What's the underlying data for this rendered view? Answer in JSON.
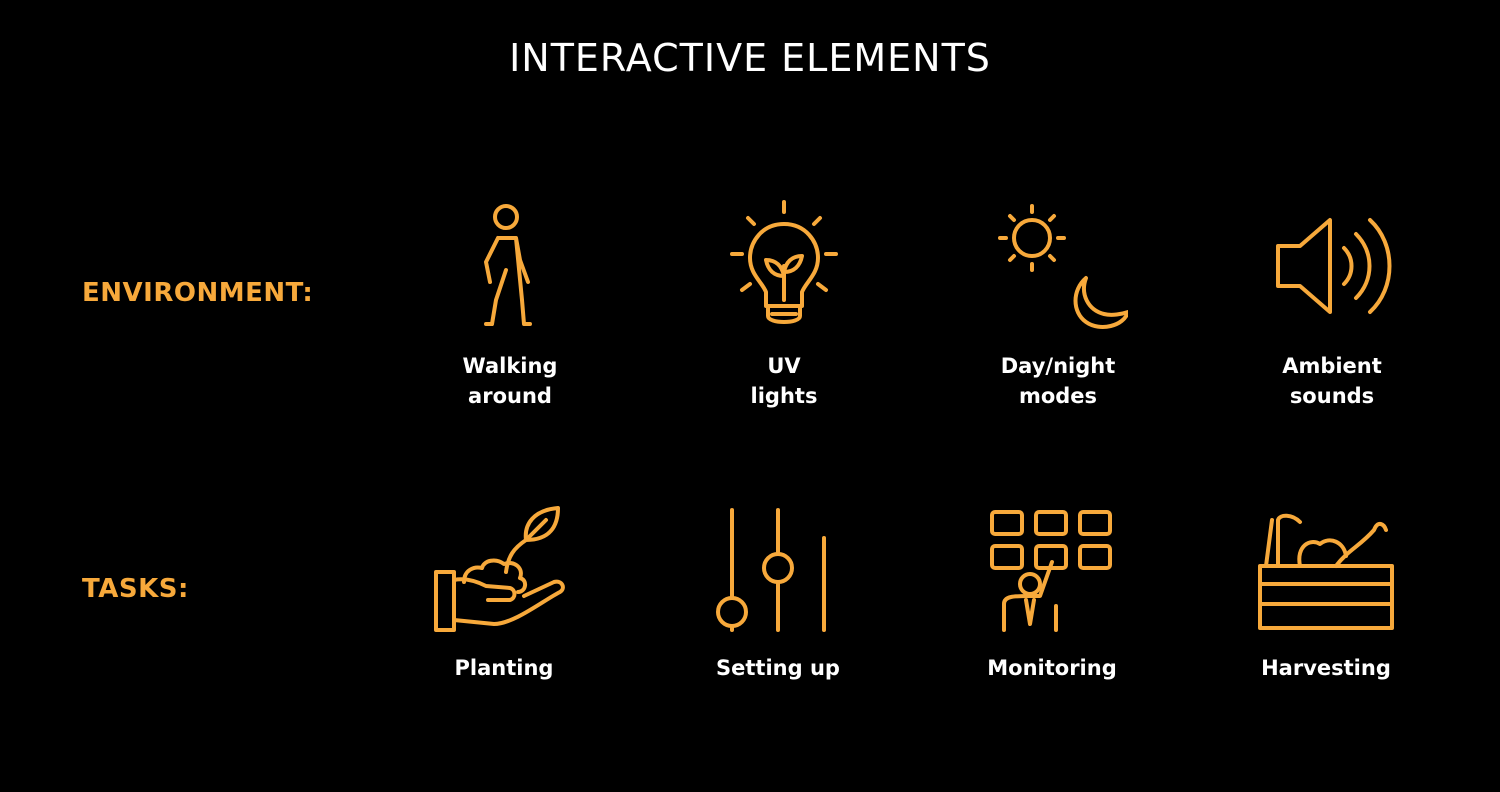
{
  "title": "INTERACTIVE ELEMENTS",
  "accent_color": "#f7a93b",
  "rows": {
    "environment": {
      "label": "ENVIRONMENT:",
      "items": [
        {
          "label": "Walking\naround",
          "icon": "walking-person-icon"
        },
        {
          "label": "UV\nlights",
          "icon": "plant-bulb-icon"
        },
        {
          "label": "Day/night\nmodes",
          "icon": "sun-moon-icon"
        },
        {
          "label": "Ambient\nsounds",
          "icon": "speaker-icon"
        }
      ]
    },
    "tasks": {
      "label": "TASKS:",
      "items": [
        {
          "label": "Planting",
          "icon": "hand-sprout-icon"
        },
        {
          "label": "Setting up",
          "icon": "sliders-icon"
        },
        {
          "label": "Monitoring",
          "icon": "dashboard-person-icon"
        },
        {
          "label": "Harvesting",
          "icon": "vegetable-crate-icon"
        }
      ]
    }
  }
}
